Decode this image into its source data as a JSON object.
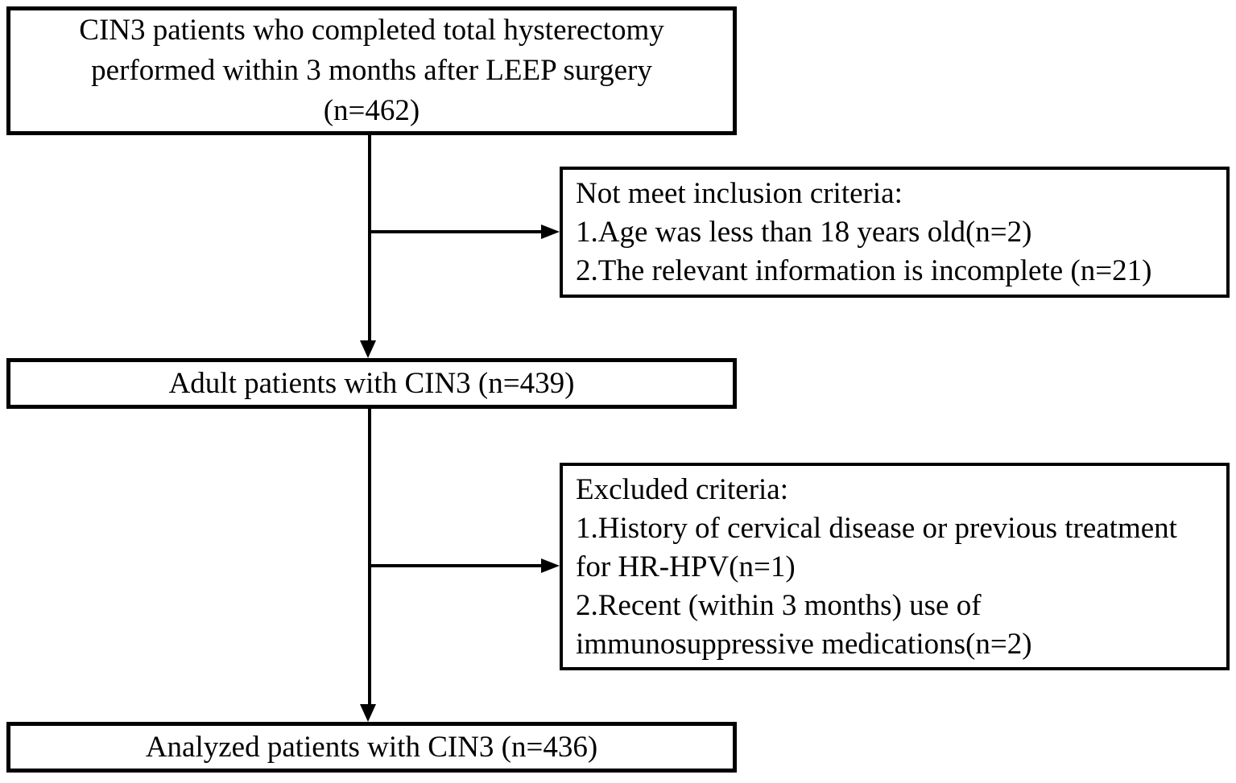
{
  "diagram": {
    "type": "patient-selection-flowchart",
    "colors": {
      "border": "#000000",
      "text": "#000000",
      "box_background": "#ffffff",
      "page_background": "#ffffff"
    },
    "top_box": {
      "lines": [
        "CIN3 patients who completed total hysterectomy",
        "performed within 3 months after LEEP surgery",
        "(n=462)"
      ],
      "n": 462
    },
    "not_inclusion_box": {
      "items": [
        "Not meet inclusion criteria:",
        "1.Age was less than 18 years old(n=2)",
        "2.The relevant information is incomplete (n=21)"
      ],
      "n_values": [
        2,
        21
      ]
    },
    "adult_box": {
      "text": "Adult patients with CIN3 (n=439)",
      "n": 439
    },
    "excluded_box": {
      "items": [
        "Excluded criteria:",
        "1.History of cervical disease or previous treatment for HR-HPV(n=1)",
        "2.Recent (within 3 months) use of immunosuppressive medications(n=2)"
      ],
      "n_values": [
        1,
        2
      ]
    },
    "analyzed_box": {
      "text": "Analyzed patients with CIN3 (n=436)",
      "n": 436
    }
  }
}
